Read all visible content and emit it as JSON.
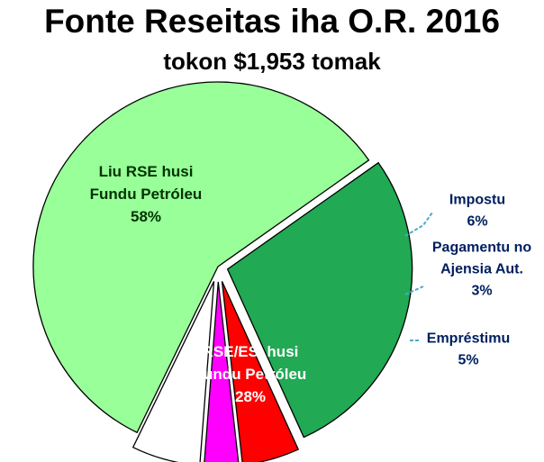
{
  "chart_data": {
    "type": "pie",
    "title": "Fonte Reseitas iha O.R. 2016",
    "subtitle": "tokon $1,953 tomak",
    "slices": [
      {
        "label_lines": [
          "Liu RSE husi",
          "Fundu Petróleu"
        ],
        "value": 58,
        "value_label": "58%",
        "color": "#99FF99",
        "label_color": "#003300",
        "exploded": false
      },
      {
        "label_lines": [
          "RSE/ESI husi",
          "Fundu Petróleu"
        ],
        "value": 28,
        "value_label": "28%",
        "color": "#21A954",
        "label_color": "#FFFFFF",
        "exploded": true
      },
      {
        "label_lines": [
          "Empréstimu"
        ],
        "value": 5,
        "value_label": "5%",
        "color": "#FF0000",
        "label_color": "#002060",
        "exploded": true
      },
      {
        "label_lines": [
          "Pagamentu no",
          "Ajensia Aut."
        ],
        "value": 3,
        "value_label": "3%",
        "color": "#FF00FF",
        "label_color": "#002060",
        "exploded": true
      },
      {
        "label_lines": [
          "Impostu"
        ],
        "value": 6,
        "value_label": "6%",
        "color": "#FFFFFF",
        "label_color": "#002060",
        "exploded": true
      }
    ],
    "leader_line_color": "#4BACC6",
    "border_color": "#000000"
  }
}
